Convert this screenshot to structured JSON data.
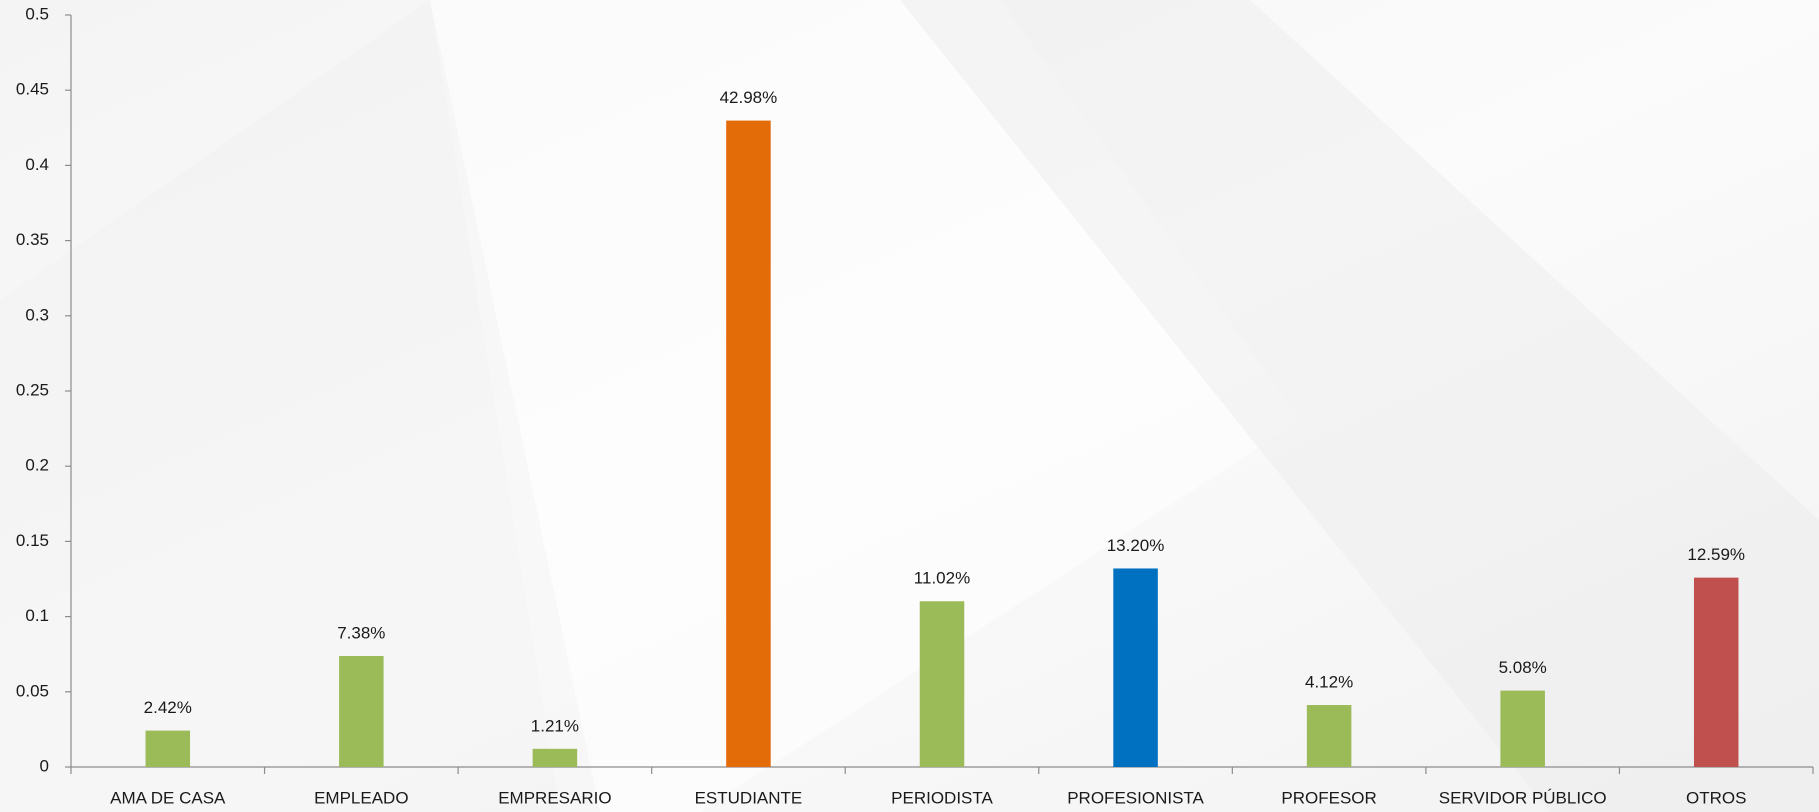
{
  "chart_data": {
    "type": "bar",
    "categories": [
      "AMA DE CASA",
      "EMPLEADO",
      "EMPRESARIO",
      "ESTUDIANTE",
      "PERIODISTA",
      "PROFESIONISTA",
      "PROFESOR",
      "SERVIDOR PÚBLICO",
      "OTROS"
    ],
    "values": [
      0.0242,
      0.0738,
      0.0121,
      0.4298,
      0.1102,
      0.132,
      0.0412,
      0.0508,
      0.1259
    ],
    "value_labels": [
      "2.42%",
      "7.38%",
      "1.21%",
      "42.98%",
      "11.02%",
      "13.20%",
      "4.12%",
      "5.08%",
      "12.59%"
    ],
    "colors": [
      "#9bbb59",
      "#9bbb59",
      "#9bbb59",
      "#e36c09",
      "#9bbb59",
      "#0070c0",
      "#9bbb59",
      "#9bbb59",
      "#c0504d"
    ],
    "ylim": [
      0,
      0.5
    ],
    "yticks": [
      0,
      0.05,
      0.1,
      0.15,
      0.2,
      0.25,
      0.3,
      0.35,
      0.4,
      0.45,
      0.5
    ],
    "grid": false
  }
}
